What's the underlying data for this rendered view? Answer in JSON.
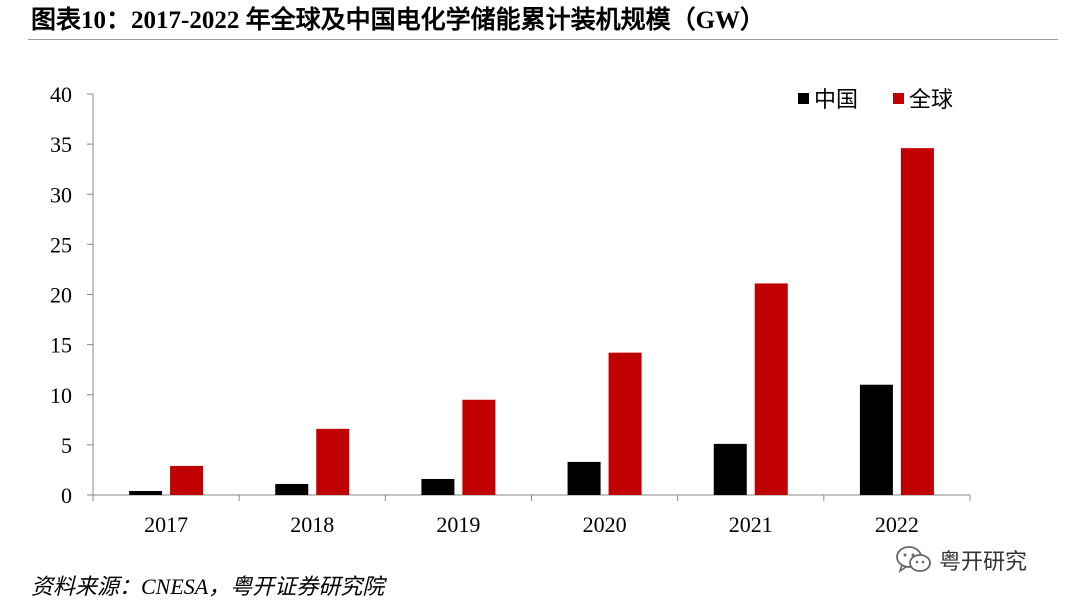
{
  "header": {
    "title": "图表10：2017-2022 年全球及中国电化学储能累计装机规模（GW）"
  },
  "footer": {
    "source": "资料来源：CNESA，粤开证券研究院",
    "watermark": "粤开研究",
    "watermark_icon": "wechat-icon"
  },
  "chart_data": {
    "type": "bar",
    "title": "2017-2022 年全球及中国电化学储能累计装机规模（GW）",
    "xlabel": "",
    "ylabel": "",
    "categories": [
      "2017",
      "2018",
      "2019",
      "2020",
      "2021",
      "2022"
    ],
    "series": [
      {
        "name": "中国",
        "color": "#000000",
        "values": [
          0.4,
          1.1,
          1.6,
          3.3,
          5.1,
          11.0
        ]
      },
      {
        "name": "全球",
        "color": "#c00000",
        "values": [
          2.9,
          6.6,
          9.5,
          14.2,
          21.1,
          34.6
        ]
      }
    ],
    "ylim": [
      0,
      40
    ],
    "yticks": [
      "0",
      "5",
      "10",
      "15",
      "20",
      "25",
      "30",
      "35",
      "40"
    ],
    "grid": false,
    "legend": "top-right"
  }
}
